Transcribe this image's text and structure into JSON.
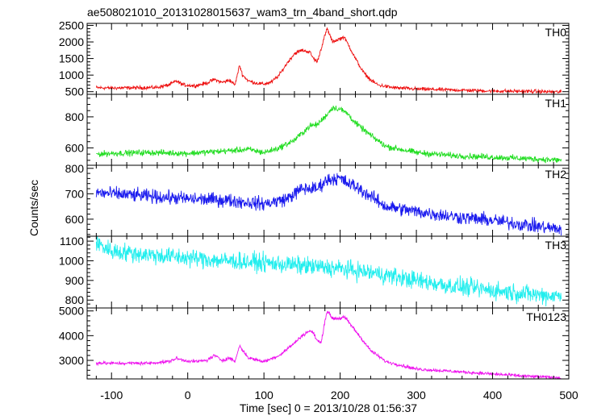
{
  "title": "ae508021010_20131028015637_wam3_trn_4band_short.qdp",
  "xlabel": "Time [sec] 0 = 2013/10/28 01:56:37",
  "ylabel": "Counts/sec",
  "chart_data": {
    "type": "line",
    "title": "ae508021010_20131028015637_wam3_trn_4band_short.qdp",
    "xlabel": "Time [sec] 0 = 2013/10/28 01:56:37",
    "ylabel": "Counts/sec",
    "xlim": [
      -132,
      500
    ],
    "xticks": [
      -100,
      0,
      100,
      200,
      300,
      400,
      500
    ],
    "grid": false,
    "legend": "none",
    "panels": [
      {
        "name": "TH0",
        "color": "#ee1111",
        "ylim": [
          420,
          2560
        ],
        "yticks": [
          500,
          1000,
          1500,
          2000,
          2500
        ],
        "x": [
          -120,
          -100,
          -80,
          -60,
          -40,
          -25,
          -15,
          -5,
          10,
          25,
          35,
          45,
          55,
          62,
          68,
          72,
          80,
          90,
          100,
          110,
          120,
          130,
          140,
          150,
          160,
          165,
          170,
          175,
          180,
          183,
          190,
          200,
          205,
          210,
          220,
          230,
          240,
          250,
          270,
          300,
          350,
          400,
          450,
          490
        ],
        "y": [
          620,
          610,
          615,
          620,
          630,
          700,
          820,
          700,
          680,
          760,
          870,
          780,
          850,
          700,
          1300,
          1000,
          820,
          760,
          730,
          790,
          1000,
          1350,
          1650,
          1750,
          1700,
          1500,
          1400,
          1800,
          2200,
          2400,
          2000,
          2100,
          2150,
          1950,
          1500,
          1100,
          850,
          700,
          620,
          580,
          550,
          520,
          510,
          490
        ],
        "noise": 45
      },
      {
        "name": "TH1",
        "color": "#22dd22",
        "ylim": [
          488,
          945
        ],
        "yticks": [
          600,
          800
        ],
        "x": [
          -120,
          -100,
          -50,
          0,
          50,
          80,
          100,
          120,
          140,
          160,
          170,
          180,
          190,
          200,
          210,
          220,
          240,
          260,
          300,
          350,
          400,
          450,
          490
        ],
        "y": [
          560,
          565,
          570,
          565,
          580,
          590,
          570,
          600,
          650,
          740,
          750,
          800,
          860,
          850,
          820,
          760,
          680,
          610,
          570,
          550,
          540,
          530,
          520
        ],
        "noise": 16
      },
      {
        "name": "TH2",
        "color": "#1a1aee",
        "ylim": [
          533,
          812
        ],
        "yticks": [
          600,
          700,
          800
        ],
        "x": [
          -120,
          -100,
          -50,
          0,
          50,
          100,
          130,
          150,
          170,
          180,
          190,
          200,
          210,
          220,
          240,
          260,
          300,
          350,
          400,
          450,
          490
        ],
        "y": [
          705,
          700,
          690,
          680,
          675,
          660,
          680,
          720,
          720,
          750,
          760,
          760,
          740,
          730,
          690,
          650,
          630,
          610,
          595,
          575,
          560
        ],
        "noise": 22
      },
      {
        "name": "TH3",
        "color": "#22eeee",
        "ylim": [
          760,
          1125
        ],
        "yticks": [
          800,
          900,
          1000,
          1100
        ],
        "x": [
          -120,
          -100,
          -50,
          0,
          50,
          100,
          150,
          200,
          250,
          300,
          350,
          400,
          450,
          490
        ],
        "y": [
          1090,
          1050,
          1030,
          1015,
          1000,
          990,
          975,
          960,
          935,
          900,
          870,
          850,
          830,
          820
        ],
        "noise": 38
      },
      {
        "name": "TH0123",
        "color": "#ee11ee",
        "ylim": [
          2250,
          5120
        ],
        "yticks": [
          3000,
          4000,
          5000
        ],
        "x": [
          -120,
          -100,
          -50,
          -25,
          -15,
          -5,
          10,
          25,
          35,
          45,
          55,
          62,
          68,
          72,
          80,
          100,
          120,
          140,
          150,
          160,
          165,
          170,
          175,
          180,
          183,
          190,
          200,
          205,
          210,
          220,
          240,
          260,
          300,
          350,
          400,
          450,
          490
        ],
        "y": [
          2900,
          2880,
          2890,
          2950,
          3080,
          3000,
          2950,
          3000,
          3200,
          3000,
          3100,
          2950,
          3600,
          3400,
          3100,
          2950,
          3200,
          3700,
          4000,
          4200,
          4100,
          3800,
          3700,
          4600,
          5000,
          4700,
          4700,
          4750,
          4600,
          4200,
          3400,
          2950,
          2650,
          2550,
          2450,
          2350,
          2300
        ],
        "noise": 55
      }
    ]
  }
}
